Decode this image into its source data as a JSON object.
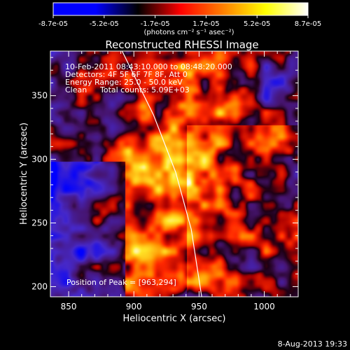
{
  "colorbar": {
    "tick_labels": [
      "-8.7e-05",
      "-5.2e-05",
      "-1.7e-05",
      "1.7e-05",
      "5.2e-05",
      "8.7e-05"
    ],
    "unit_label": "(photons cm⁻² s⁻¹ asec⁻²)",
    "range": [
      -8.7e-05,
      8.7e-05
    ],
    "palette": [
      "#0000ff",
      "#0000ff",
      "#000000",
      "#ff0000",
      "#ff7f00",
      "#ffff00",
      "#ffffff"
    ]
  },
  "chart_data": {
    "type": "heatmap",
    "title": "Reconstructed RHESSI Image",
    "xlabel": "Heliocentric X (arcsec)",
    "ylabel": "Heliocentric Y (arcsec)",
    "xlim": [
      836,
      1026
    ],
    "ylim": [
      192,
      385
    ],
    "x_ticks": [
      850,
      900,
      950,
      1000
    ],
    "y_ticks": [
      200,
      250,
      300,
      350
    ],
    "annotations": [
      "10-Feb-2011 08:43:10.000 to 08:48:20.000",
      "Detectors: 4F 5F 6F 7F 8F, Att 0",
      "Energy Range: 25.0 - 50.0 keV",
      "Clean",
      "Total counts: 5.09E+03"
    ],
    "peak_label": "Position of Peak = [963,294]",
    "peak_position": [
      963,
      294
    ],
    "limb_curve": [
      [
        891,
        385
      ],
      [
        915,
        335
      ],
      [
        932,
        290
      ],
      [
        944,
        245
      ],
      [
        952,
        192
      ]
    ]
  },
  "footer": {
    "date": "8-Aug-2013 19:33"
  }
}
